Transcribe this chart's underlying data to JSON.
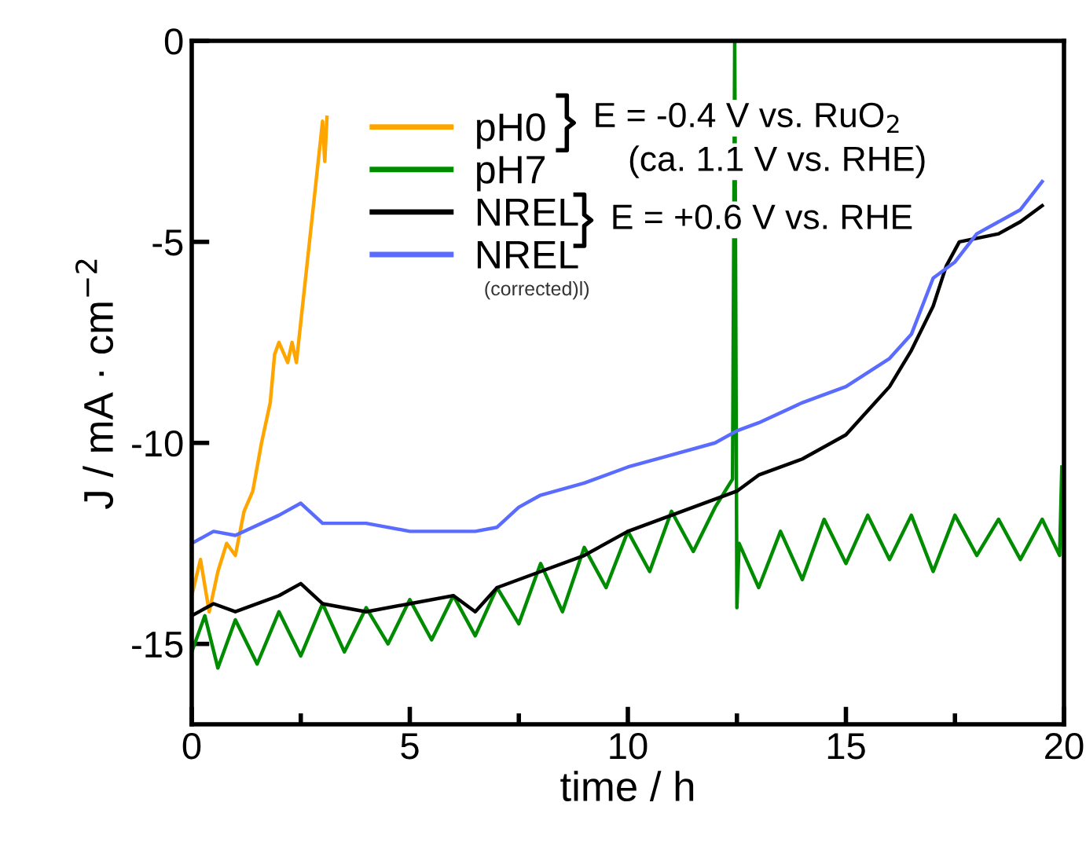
{
  "chart_data": {
    "type": "line",
    "xlabel": "time / h",
    "ylabel": "J / mA · cm$^{−2}$",
    "xlim": [
      0,
      20
    ],
    "ylim": [
      -17,
      0
    ],
    "xticks": [
      0,
      5,
      10,
      15,
      20
    ],
    "yticks": [
      0,
      -5,
      -10,
      -15
    ],
    "grid": false,
    "legend": "top",
    "line_style": "solid",
    "marker": "none",
    "series": [
      {
        "name": "pH0",
        "color": "#ffa500",
        "x": [
          0,
          0.2,
          0.4,
          0.6,
          0.8,
          1.0,
          1.2,
          1.4,
          1.6,
          1.8,
          1.9,
          2.0,
          2.2,
          2.3,
          2.4,
          2.5,
          2.7,
          2.9,
          3.0,
          3.05,
          3.1
        ],
        "values": [
          -13.8,
          -12.9,
          -14.2,
          -13.2,
          -12.5,
          -12.8,
          -11.7,
          -11.2,
          -10.0,
          -9.0,
          -7.8,
          -7.5,
          -8.0,
          -7.5,
          -8.0,
          -7.0,
          -5.0,
          -3.0,
          -2.0,
          -3.0,
          -1.9
        ]
      },
      {
        "name": "pH7",
        "color": "#008c00",
        "x": [
          0,
          0.3,
          0.6,
          1,
          1.5,
          2,
          2.5,
          3,
          3.5,
          4,
          4.5,
          5,
          5.5,
          6,
          6.5,
          7,
          7.5,
          8,
          8.5,
          9,
          9.5,
          10,
          10.5,
          11,
          11.5,
          12,
          12.4,
          12.45,
          12.5,
          12.55,
          13,
          13.5,
          14,
          14.5,
          15,
          15.5,
          16,
          16.5,
          17,
          17.5,
          18,
          18.5,
          19,
          19.5,
          19.9,
          19.95
        ],
        "values": [
          -15.2,
          -14.3,
          -15.6,
          -14.4,
          -15.5,
          -14.2,
          -15.3,
          -14.0,
          -15.2,
          -14.1,
          -15.0,
          -13.9,
          -14.9,
          -13.8,
          -14.8,
          -13.6,
          -14.5,
          -13.0,
          -14.2,
          -12.6,
          -13.6,
          -12.2,
          -13.2,
          -11.7,
          -12.7,
          -11.6,
          -10.9,
          0,
          -14.1,
          -12.5,
          -13.6,
          -12.2,
          -13.4,
          -11.9,
          -13.0,
          -11.8,
          -12.9,
          -11.8,
          -13.2,
          -11.8,
          -12.8,
          -11.9,
          -12.9,
          -11.9,
          -12.8,
          -10.6
        ]
      },
      {
        "name": "NREL",
        "color": "#000000",
        "x": [
          0,
          0.5,
          1,
          2,
          2.5,
          3,
          4,
          5,
          6,
          6.5,
          7,
          8,
          9,
          10,
          11,
          12,
          12.5,
          13,
          14,
          15,
          16,
          16.5,
          17,
          17.3,
          17.6,
          18.5,
          19,
          19.5
        ],
        "values": [
          -14.3,
          -14.0,
          -14.2,
          -13.8,
          -13.5,
          -14.0,
          -14.2,
          -14.0,
          -13.8,
          -14.2,
          -13.6,
          -13.2,
          -12.8,
          -12.2,
          -11.8,
          -11.4,
          -11.2,
          -10.8,
          -10.4,
          -9.8,
          -8.6,
          -7.7,
          -6.6,
          -5.6,
          -5.0,
          -4.8,
          -4.5,
          -4.1
        ]
      },
      {
        "name": "NREL",
        "color": "#5a6cff",
        "x": [
          0,
          0.5,
          1,
          2,
          2.5,
          3,
          4,
          5,
          6.5,
          7,
          7.5,
          8,
          9,
          10,
          11,
          12,
          12.5,
          13,
          14,
          15,
          16,
          16.5,
          17,
          17.5,
          18,
          19,
          19.5
        ],
        "values": [
          -12.5,
          -12.2,
          -12.3,
          -11.8,
          -11.5,
          -12.0,
          -12.0,
          -12.2,
          -12.2,
          -12.1,
          -11.6,
          -11.3,
          -11.0,
          -10.6,
          -10.3,
          -10.0,
          -9.7,
          -9.5,
          -9.0,
          -8.6,
          -7.9,
          -7.3,
          -5.9,
          -5.5,
          -4.8,
          -4.2,
          -3.5
        ]
      }
    ],
    "annotations": [
      "(corrected)l)",
      "E = -0.4 V vs. RuO$_{2}$",
      "(ca. 1.1 V vs. RHE)",
      "E = +0.6 V vs. RHE"
    ]
  }
}
